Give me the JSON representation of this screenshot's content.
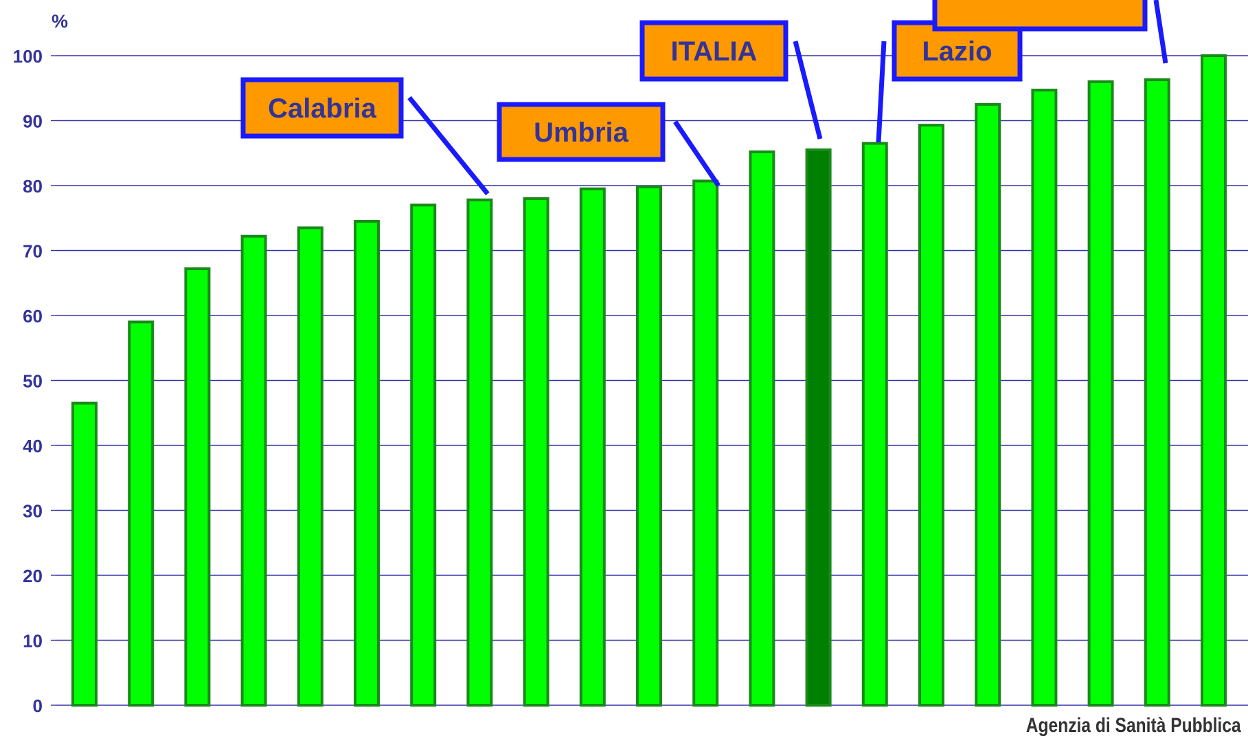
{
  "colors": {
    "bar_fill": "#00ff00",
    "bar_stroke": "#1a8a1a",
    "bar_highlight_fill": "#008000",
    "grid": "#3333aa",
    "axis_text": "#333399",
    "callout_fill": "#ff9900",
    "callout_border": "#1a1aff",
    "callout_text": "#333399",
    "leader_line": "#1a1aff"
  },
  "chart_data": {
    "type": "bar",
    "ylabel": "%",
    "ylim": [
      0,
      100
    ],
    "yticks": [
      0,
      10,
      20,
      30,
      40,
      50,
      60,
      70,
      80,
      90,
      100
    ],
    "grid": true,
    "values": [
      46.5,
      59,
      67.2,
      72.2,
      73.5,
      74.5,
      77,
      77.8,
      78,
      79.5,
      79.8,
      80.7,
      85.2,
      85.5,
      86.5,
      89.3,
      92.5,
      94.7,
      96,
      96.3,
      100
    ],
    "highlight_index": 13,
    "annotations": [
      {
        "text": "Calabria",
        "target_index": 7
      },
      {
        "text": "Umbria",
        "target_index": 11
      },
      {
        "text": "ITALIA",
        "target_index": 13
      },
      {
        "text": "Lazio",
        "target_index": 14
      },
      {
        "text": "",
        "target_index": 19
      }
    ]
  },
  "source": "Agenzia di Sanità Pubblica"
}
